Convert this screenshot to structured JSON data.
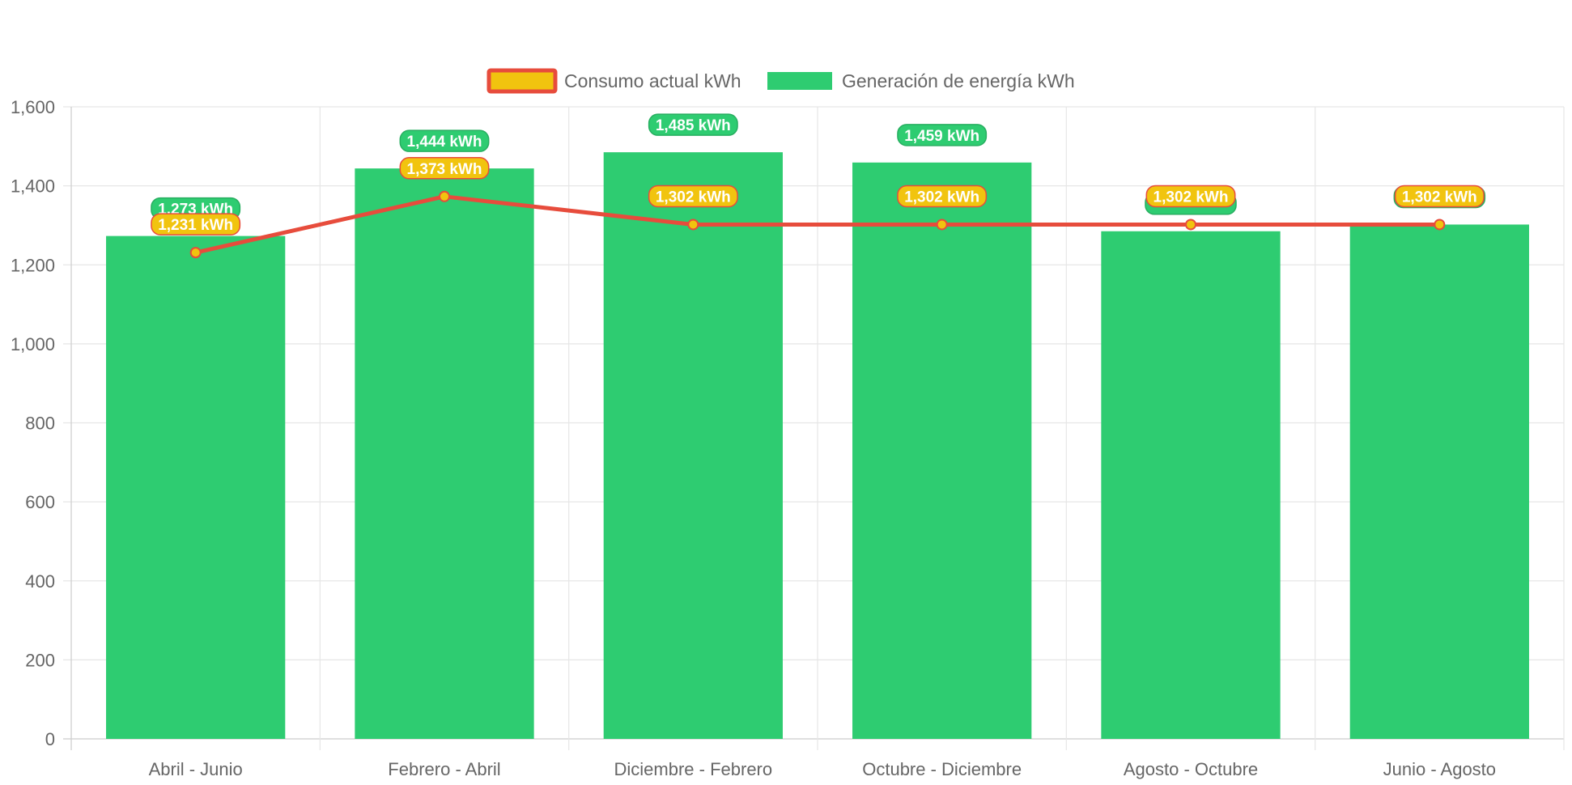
{
  "colors": {
    "bar_fill": "#2ecc71",
    "bar_label_bg": "#2ecc71",
    "bar_label_border": "#27ae60",
    "line_stroke": "#e74c3c",
    "point_fill": "#f1c40f",
    "line_label_bg": "#f1c40f",
    "line_label_border": "#e74c3c",
    "grid": "#e6e6e6",
    "axis_text": "#666666"
  },
  "chart_data": {
    "type": "bar",
    "title": "",
    "xlabel": "",
    "ylabel": "",
    "ylim": [
      0,
      1600
    ],
    "y_ticks": [
      0,
      200,
      400,
      600,
      800,
      1000,
      1200,
      1400,
      1600
    ],
    "y_tick_labels": [
      "0",
      "200",
      "400",
      "600",
      "800",
      "1,000",
      "1,200",
      "1,400",
      "1,600"
    ],
    "grid": true,
    "legend_position": "top-center",
    "categories": [
      "Abril - Junio",
      "Febrero - Abril",
      "Diciembre - Febrero",
      "Octubre - Diciembre",
      "Agosto - Octubre",
      "Junio - Agosto"
    ],
    "series": [
      {
        "name": "Consumo actual kWh",
        "type": "line",
        "values": [
          1231,
          1373,
          1302,
          1302,
          1302,
          1302
        ],
        "labels": [
          "1,231 kWh",
          "1,373 kWh",
          "1,302 kWh",
          "1,302 kWh",
          "1,302 kWh",
          "1,302 kWh"
        ]
      },
      {
        "name": "Generación de energía kWh",
        "type": "bar",
        "values": [
          1273,
          1444,
          1485,
          1459,
          1285,
          1302
        ],
        "labels": [
          "1,273 kWh",
          "1,444 kWh",
          "1,485 kWh",
          "1,459 kWh",
          "",
          ""
        ]
      }
    ]
  }
}
